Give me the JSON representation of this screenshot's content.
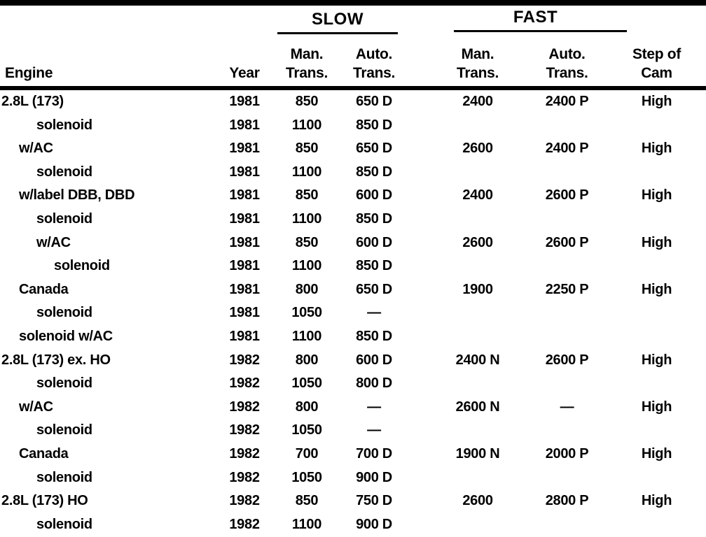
{
  "document": {
    "type": "engine-idle-speed-specification-table",
    "colors": {
      "ink": "#000000",
      "paper": "#ffffff"
    }
  },
  "table": {
    "groups": {
      "slow": "SLOW",
      "fast": "FAST"
    },
    "headers": {
      "engine": "Engine",
      "year": "Year",
      "slow_man_l1": "Man.",
      "slow_man_l2": "Trans.",
      "slow_auto_l1": "Auto.",
      "slow_auto_l2": "Trans.",
      "fast_man_l1": "Man.",
      "fast_man_l2": "Trans.",
      "fast_auto_l1": "Auto.",
      "fast_auto_l2": "Trans.",
      "cam_l1": "Step of",
      "cam_l2": "Cam"
    },
    "rows": [
      {
        "engine": "2.8L (173)",
        "indent": 0,
        "year": "1981",
        "slow_man": "850",
        "slow_auto": "650 D",
        "fast_man": "2400",
        "fast_auto": "2400 P",
        "cam": "High"
      },
      {
        "engine": "solenoid",
        "indent": 2,
        "year": "1981",
        "slow_man": "1100",
        "slow_auto": "850 D",
        "fast_man": "",
        "fast_auto": "",
        "cam": ""
      },
      {
        "engine": "w/AC",
        "indent": 1,
        "year": "1981",
        "slow_man": "850",
        "slow_auto": "650 D",
        "fast_man": "2600",
        "fast_auto": "2400 P",
        "cam": "High"
      },
      {
        "engine": "solenoid",
        "indent": 2,
        "year": "1981",
        "slow_man": "1100",
        "slow_auto": "850 D",
        "fast_man": "",
        "fast_auto": "",
        "cam": ""
      },
      {
        "engine": "w/label DBB, DBD",
        "indent": 1,
        "year": "1981",
        "slow_man": "850",
        "slow_auto": "600 D",
        "fast_man": "2400",
        "fast_auto": "2600 P",
        "cam": "High"
      },
      {
        "engine": "solenoid",
        "indent": 2,
        "year": "1981",
        "slow_man": "1100",
        "slow_auto": "850 D",
        "fast_man": "",
        "fast_auto": "",
        "cam": ""
      },
      {
        "engine": "w/AC",
        "indent": 2,
        "year": "1981",
        "slow_man": "850",
        "slow_auto": "600 D",
        "fast_man": "2600",
        "fast_auto": "2600 P",
        "cam": "High"
      },
      {
        "engine": "solenoid",
        "indent": 3,
        "year": "1981",
        "slow_man": "1100",
        "slow_auto": "850 D",
        "fast_man": "",
        "fast_auto": "",
        "cam": ""
      },
      {
        "engine": "Canada",
        "indent": 1,
        "year": "1981",
        "slow_man": "800",
        "slow_auto": "650 D",
        "fast_man": "1900",
        "fast_auto": "2250 P",
        "cam": "High"
      },
      {
        "engine": "solenoid",
        "indent": 2,
        "year": "1981",
        "slow_man": "1050",
        "slow_auto": "—",
        "fast_man": "",
        "fast_auto": "",
        "cam": ""
      },
      {
        "engine": "solenoid w/AC",
        "indent": 1,
        "year": "1981",
        "slow_man": "1100",
        "slow_auto": "850 D",
        "fast_man": "",
        "fast_auto": "",
        "cam": ""
      },
      {
        "engine": "2.8L (173) ex. HO",
        "indent": 0,
        "year": "1982",
        "slow_man": "800",
        "slow_auto": "600 D",
        "fast_man": "2400 N",
        "fast_auto": "2600 P",
        "cam": "High"
      },
      {
        "engine": "solenoid",
        "indent": 2,
        "year": "1982",
        "slow_man": "1050",
        "slow_auto": "800 D",
        "fast_man": "",
        "fast_auto": "",
        "cam": ""
      },
      {
        "engine": "w/AC",
        "indent": 1,
        "year": "1982",
        "slow_man": "800",
        "slow_auto": "—",
        "fast_man": "2600 N",
        "fast_auto": "—",
        "cam": "High"
      },
      {
        "engine": "solenoid",
        "indent": 2,
        "year": "1982",
        "slow_man": "1050",
        "slow_auto": "—",
        "fast_man": "",
        "fast_auto": "",
        "cam": ""
      },
      {
        "engine": "Canada",
        "indent": 1,
        "year": "1982",
        "slow_man": "700",
        "slow_auto": "700 D",
        "fast_man": "1900 N",
        "fast_auto": "2000 P",
        "cam": "High"
      },
      {
        "engine": "solenoid",
        "indent": 2,
        "year": "1982",
        "slow_man": "1050",
        "slow_auto": "900 D",
        "fast_man": "",
        "fast_auto": "",
        "cam": ""
      },
      {
        "engine": "2.8L (173) HO",
        "indent": 0,
        "year": "1982",
        "slow_man": "850",
        "slow_auto": "750 D",
        "fast_man": "2600",
        "fast_auto": "2800 P",
        "cam": "High"
      },
      {
        "engine": "solenoid",
        "indent": 2,
        "year": "1982",
        "slow_man": "1100",
        "slow_auto": "900 D",
        "fast_man": "",
        "fast_auto": "",
        "cam": ""
      }
    ]
  }
}
